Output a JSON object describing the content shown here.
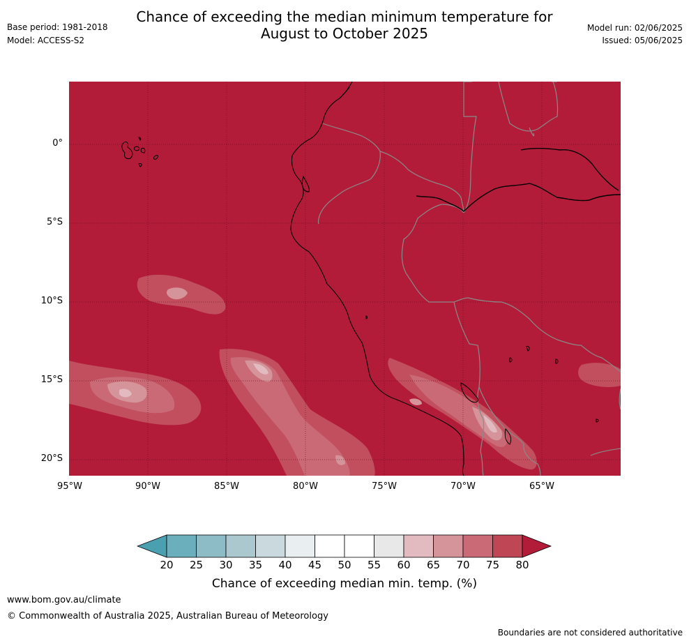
{
  "title_line1": "Chance of exceeding the median minimum temperature for",
  "title_line2": "August to October 2025",
  "base_period": "Base period: 1981-2018",
  "model": "Model: ACCESS-S2",
  "model_run": "Model run: 02/06/2025",
  "issued": "Issued: 05/06/2025",
  "lat_labels": [
    "0°",
    "5°S",
    "10°S",
    "15°S",
    "20°S"
  ],
  "lon_labels": [
    "95°W",
    "90°W",
    "85°W",
    "80°W",
    "75°W",
    "70°W",
    "65°W"
  ],
  "colorbar": {
    "title": "Chance of exceeding median min. temp. (%)",
    "ticks": [
      "20",
      "25",
      "30",
      "35",
      "40",
      "45",
      "50",
      "55",
      "60",
      "65",
      "70",
      "75",
      "80"
    ],
    "colors": [
      "#4aa0ae",
      "#6aafbb",
      "#8ebcc6",
      "#aac8ce",
      "#c9d9dd",
      "#e9eff1",
      "#ffffff",
      "#ffffff",
      "#e8e8e8",
      "#e2bbc0",
      "#d5939a",
      "#c96a76",
      "#be4655",
      "#b21c38"
    ]
  },
  "map_colors": {
    "background": "#b21c38",
    "level_70": "#c14f5e",
    "level_65": "#c96a76",
    "level_60": "#d5939a",
    "level_55": "#e2bbc0"
  },
  "footer": {
    "site": "www.bom.gov.au/climate",
    "copyright": "© Commonwealth of Australia 2025, Australian Bureau of Meteorology",
    "disclaimer": "Boundaries are not considered authoritative"
  }
}
